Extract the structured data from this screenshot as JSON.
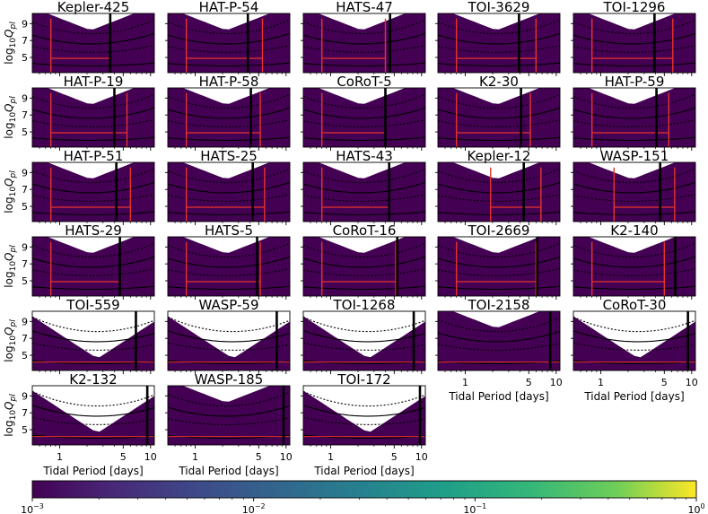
{
  "chart_data": {
    "type": "heatmap",
    "panels": [
      {
        "title": "Kepler-425",
        "period": 3.6,
        "style": "yellow",
        "reds": [
          0.8,
          3.6
        ]
      },
      {
        "title": "HAT-P-54",
        "period": 3.8,
        "style": "yellow",
        "reds": [
          0.8,
          5.5
        ]
      },
      {
        "title": "HATS-47",
        "period": 4.5,
        "style": "yellow",
        "reds": [
          0.8,
          4.0
        ]
      },
      {
        "title": "TOI-3629",
        "period": 3.9,
        "style": "yellow",
        "reds": [
          0.8,
          6.0
        ]
      },
      {
        "title": "TOI-1296",
        "period": 3.9,
        "style": "yellow",
        "reds": [
          0.8,
          6.2
        ]
      },
      {
        "title": "HAT-P-19",
        "period": 4.0,
        "style": "yellow",
        "reds": [
          0.8,
          5.5
        ]
      },
      {
        "title": "HAT-P-58",
        "period": 4.1,
        "style": "yellow",
        "reds": [
          0.8,
          5.2
        ]
      },
      {
        "title": "CoRoT-5",
        "period": 4.0,
        "style": "yellow",
        "reds": [
          0.8,
          4.0
        ]
      },
      {
        "title": "K2-30",
        "period": 4.1,
        "style": "teal",
        "reds": [
          0.8,
          5.2
        ]
      },
      {
        "title": "HAT-P-59",
        "period": 4.1,
        "style": "teal",
        "reds": [
          0.8,
          5.6
        ]
      },
      {
        "title": "HAT-P-51",
        "period": 4.2,
        "style": "yellow",
        "reds": [
          0.8,
          6.0
        ]
      },
      {
        "title": "HATS-25",
        "period": 4.3,
        "style": "yellow",
        "reds": [
          0.8,
          5.8
        ]
      },
      {
        "title": "HATS-43",
        "period": 4.4,
        "style": "yellow",
        "reds": [
          0.8,
          4.4
        ]
      },
      {
        "title": "Kepler-12",
        "period": 4.4,
        "style": "yellow",
        "reds": [
          1.9,
          6.8
        ]
      },
      {
        "title": "WASP-151",
        "period": 4.5,
        "style": "teal",
        "reds": [
          1.4,
          6.5
        ]
      },
      {
        "title": "HATS-29",
        "period": 4.6,
        "style": "yellow",
        "reds": [
          0.8,
          4.6
        ]
      },
      {
        "title": "HATS-5",
        "period": 4.8,
        "style": "teal",
        "reds": [
          0.8,
          5.2
        ]
      },
      {
        "title": "CoRoT-16",
        "period": 5.4,
        "style": "teal",
        "reds": [
          0.8,
          5.2
        ]
      },
      {
        "title": "TOI-2669",
        "period": 6.2,
        "style": "yellow",
        "reds": [
          0.8,
          6.0
        ]
      },
      {
        "title": "K2-140",
        "period": 6.6,
        "style": "yellow",
        "reds": [
          0.8,
          5.0
        ]
      },
      {
        "title": "TOI-559",
        "period": 6.9,
        "style": "low",
        "reds": []
      },
      {
        "title": "WASP-59",
        "period": 7.9,
        "style": "low",
        "reds": []
      },
      {
        "title": "TOI-1268",
        "period": 8.2,
        "style": "low",
        "reds": []
      },
      {
        "title": "TOI-2158",
        "period": 8.6,
        "style": "teal",
        "reds": []
      },
      {
        "title": "CoRoT-30",
        "period": 9.1,
        "style": "low",
        "reds": []
      },
      {
        "title": "K2-132",
        "period": 9.2,
        "style": "low",
        "reds": []
      },
      {
        "title": "WASP-185",
        "period": 9.4,
        "style": "teal",
        "reds": []
      },
      {
        "title": "TOI-172",
        "period": 9.6,
        "style": "low",
        "reds": []
      }
    ],
    "x_scale": "log",
    "xlim": [
      0.5,
      11
    ],
    "xticks": [
      1,
      5,
      10
    ],
    "xtick_labels": [
      "1",
      "5",
      "10"
    ],
    "xlabel": "Tidal Period [days]",
    "ylim": [
      3.2,
      10.2
    ],
    "yticks": [
      5,
      7,
      9
    ],
    "ytick_labels": [
      "5",
      "7",
      "9"
    ],
    "ylabel_parts": [
      "log",
      "10",
      "Q",
      "pl"
    ],
    "colorbar": {
      "scale": "log",
      "range": [
        0.001,
        1
      ],
      "ticks": [
        {
          "value": 0.001,
          "base": "10",
          "exp": "−3"
        },
        {
          "value": 0.01,
          "base": "10",
          "exp": "−2"
        },
        {
          "value": 0.1,
          "base": "10",
          "exp": "−1"
        },
        {
          "value": 1,
          "base": "10",
          "exp": "0"
        }
      ],
      "colormap": "viridis"
    }
  }
}
